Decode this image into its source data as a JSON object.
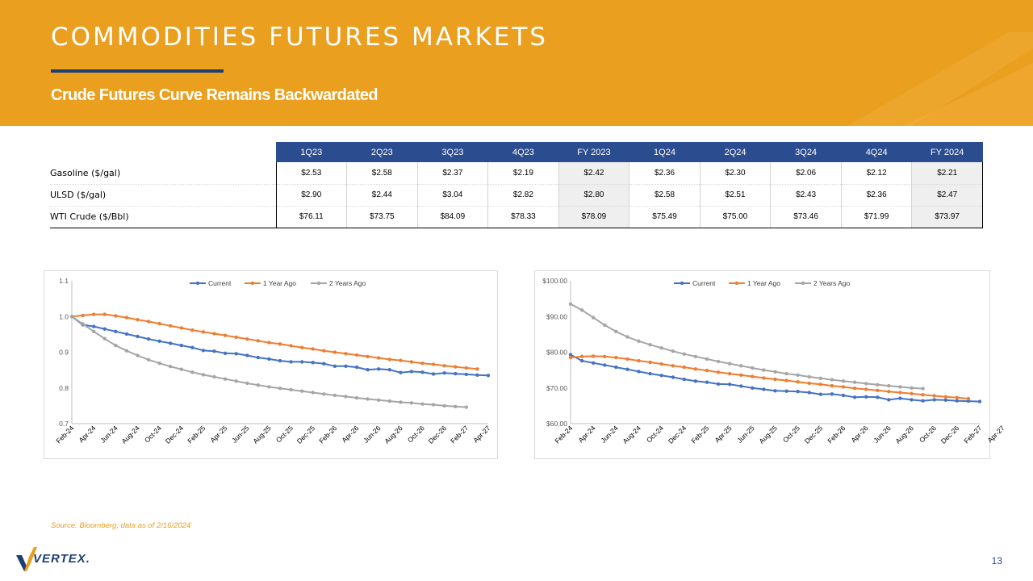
{
  "header": {
    "title": "COMMODITIES FUTURES MARKETS",
    "subtitle": "Crude Futures Curve Remains Backwardated"
  },
  "colors": {
    "banner": "#ea9f1e",
    "navy": "#2b4c8f",
    "current": "#4472c4",
    "year_ago": "#ed7d31",
    "two_years_ago": "#a5a5a5"
  },
  "table": {
    "columns": [
      "1Q23",
      "2Q23",
      "3Q23",
      "4Q23",
      "FY 2023",
      "1Q24",
      "2Q24",
      "3Q24",
      "4Q24",
      "FY 2024"
    ],
    "rows": [
      {
        "label": "Gasoline ($/gal)",
        "values": [
          "$2.53",
          "$2.58",
          "$2.37",
          "$2.19",
          "$2.42",
          "$2.36",
          "$2.30",
          "$2.06",
          "$2.12",
          "$2.21"
        ]
      },
      {
        "label": "ULSD ($/gal)",
        "values": [
          "$2.90",
          "$2.44",
          "$3.04",
          "$2.82",
          "$2.80",
          "$2.58",
          "$2.51",
          "$2.43",
          "$2.36",
          "$2.47"
        ]
      },
      {
        "label": "WTI Crude ($/Bbl)",
        "values": [
          "$76.11",
          "$73.75",
          "$84.09",
          "$78.33",
          "$78.09",
          "$75.49",
          "$75.00",
          "$73.46",
          "$71.99",
          "$73.97"
        ]
      }
    ]
  },
  "chart_data": [
    {
      "type": "line",
      "title": "",
      "xlabel": "",
      "ylabel": "",
      "ylim": [
        0.7,
        1.1
      ],
      "yticks": [
        "0.7",
        "0.8",
        "0.9",
        "1.0",
        "1.1"
      ],
      "ytick_values": [
        0.7,
        0.8,
        0.9,
        1.0,
        1.1
      ],
      "x_tick_labels": [
        "Feb-24",
        "Apr-24",
        "Jun-24",
        "Aug-24",
        "Oct-24",
        "Dec-24",
        "Feb-25",
        "Apr-25",
        "Jun-25",
        "Aug-25",
        "Oct-25",
        "Dec-25",
        "Feb-26",
        "Apr-26",
        "Jun-26",
        "Aug-26",
        "Oct-26",
        "Dec-26",
        "Feb-27",
        "Apr-27"
      ],
      "legend_position": "top",
      "series": [
        {
          "name": "Current",
          "values": [
            1.0,
            0.977,
            0.972,
            0.965,
            0.958,
            0.951,
            0.944,
            0.937,
            0.931,
            0.925,
            0.919,
            0.913,
            0.905,
            0.903,
            0.897,
            0.896,
            0.891,
            0.885,
            0.881,
            0.876,
            0.873,
            0.873,
            0.871,
            0.868,
            0.861,
            0.861,
            0.858,
            0.851,
            0.853,
            0.851,
            0.843,
            0.846,
            0.844,
            0.839,
            0.842,
            0.84,
            0.838,
            0.836,
            0.835
          ]
        },
        {
          "name": "1 Year Ago",
          "values": [
            1.0,
            1.003,
            1.006,
            1.006,
            1.002,
            0.997,
            0.991,
            0.986,
            0.98,
            0.974,
            0.968,
            0.962,
            0.957,
            0.952,
            0.947,
            0.942,
            0.937,
            0.932,
            0.927,
            0.923,
            0.918,
            0.913,
            0.909,
            0.904,
            0.9,
            0.896,
            0.892,
            0.888,
            0.884,
            0.88,
            0.877,
            0.873,
            0.869,
            0.866,
            0.862,
            0.859,
            0.856,
            0.853
          ]
        },
        {
          "name": "2 Years Ago",
          "values": [
            1.0,
            0.979,
            0.958,
            0.938,
            0.919,
            0.904,
            0.891,
            0.879,
            0.869,
            0.86,
            0.852,
            0.844,
            0.837,
            0.831,
            0.825,
            0.819,
            0.813,
            0.808,
            0.803,
            0.799,
            0.795,
            0.791,
            0.787,
            0.783,
            0.779,
            0.776,
            0.772,
            0.769,
            0.766,
            0.763,
            0.76,
            0.758,
            0.755,
            0.753,
            0.75,
            0.748,
            0.746
          ]
        }
      ]
    },
    {
      "type": "line",
      "title": "",
      "xlabel": "",
      "ylabel": "",
      "ylim": [
        60,
        100
      ],
      "yticks": [
        "$60.00",
        "$70.00",
        "$80.00",
        "$90.00",
        "$100.00"
      ],
      "ytick_values": [
        60,
        70,
        80,
        90,
        100
      ],
      "x_tick_labels": [
        "Feb-24",
        "Apr-24",
        "Jun-24",
        "Aug-24",
        "Oct-24",
        "Dec-24",
        "Feb-25",
        "Apr-25",
        "Jun-25",
        "Aug-25",
        "Oct-25",
        "Dec-25",
        "Feb-26",
        "Apr-26",
        "Jun-26",
        "Aug-26",
        "Oct-26",
        "Dec-26",
        "Feb-27",
        "Apr-27"
      ],
      "legend_position": "top",
      "series": [
        {
          "name": "Current",
          "values": [
            79.3,
            77.6,
            77.0,
            76.4,
            75.8,
            75.2,
            74.6,
            74.0,
            73.5,
            73.0,
            72.4,
            71.9,
            71.6,
            71.1,
            71.0,
            70.5,
            70.0,
            69.6,
            69.2,
            69.1,
            69.0,
            68.7,
            68.2,
            68.3,
            67.9,
            67.4,
            67.5,
            67.4,
            66.7,
            67.1,
            66.7,
            66.4,
            66.7,
            66.6,
            66.4,
            66.3,
            66.2
          ]
        },
        {
          "name": "1 Year Ago",
          "values": [
            78.5,
            78.8,
            78.9,
            78.8,
            78.5,
            78.1,
            77.6,
            77.2,
            76.7,
            76.2,
            75.8,
            75.3,
            74.9,
            74.4,
            74.0,
            73.6,
            73.2,
            72.8,
            72.4,
            72.1,
            71.7,
            71.3,
            71.0,
            70.6,
            70.3,
            69.9,
            69.6,
            69.3,
            69.0,
            68.7,
            68.4,
            68.1,
            67.8,
            67.5,
            67.3,
            67.0
          ]
        },
        {
          "name": "2 Years Ago",
          "values": [
            93.5,
            91.8,
            89.7,
            87.6,
            85.8,
            84.3,
            83.1,
            82.1,
            81.2,
            80.3,
            79.5,
            78.8,
            78.1,
            77.4,
            76.8,
            76.2,
            75.6,
            75.0,
            74.5,
            74.0,
            73.6,
            73.1,
            72.7,
            72.3,
            71.9,
            71.6,
            71.2,
            70.9,
            70.6,
            70.3,
            70.0,
            69.8
          ]
        }
      ]
    }
  ],
  "footer": {
    "source": "Source: Bloomberg; data as of 2/16/2024",
    "logo_text": "VERTEX.",
    "page_number": "13"
  }
}
